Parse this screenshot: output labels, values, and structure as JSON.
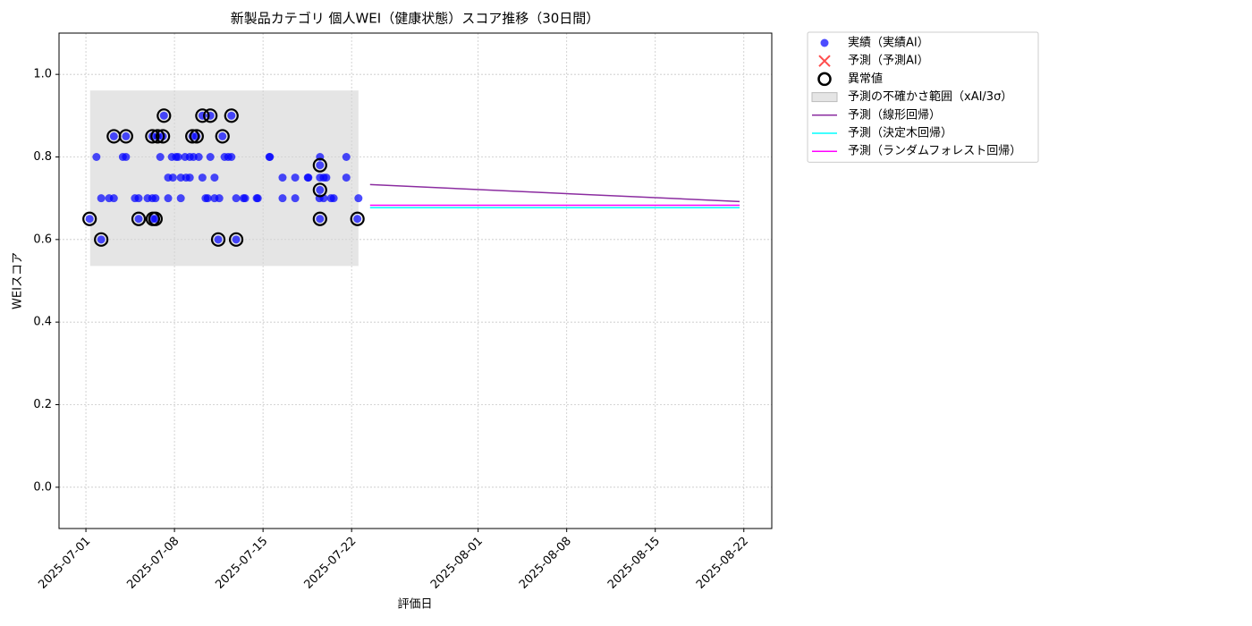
{
  "chart_data": {
    "type": "scatter",
    "title": "新製品カテゴリ 個人WEI（健康状態）スコア推移（30日間）",
    "x_label": "評価日",
    "y_label": "WEIスコア",
    "xlim": [
      "2025-06-28T21:00",
      "2025-08-24T05:00"
    ],
    "ylim": [
      -0.1,
      1.1
    ],
    "xticks": [
      "2025-07-01",
      "2025-07-08",
      "2025-07-15",
      "2025-07-22",
      "2025-08-01",
      "2025-08-08",
      "2025-08-15",
      "2025-08-22"
    ],
    "yticks": [
      {
        "value": 0,
        "label": "0.0"
      },
      0.2,
      0.4,
      0.6,
      0.8,
      {
        "value": 1,
        "label": "1.0"
      }
    ],
    "grid": true,
    "legend": "outside upper right",
    "series": [
      {
        "name": "実績（実績AI）",
        "kind": "points",
        "color": "#0000ff",
        "x": [
          "2025-07-01T07:00",
          "2025-07-01T20:00",
          "2025-07-02T05:00",
          "2025-07-02T05:00",
          "2025-07-02T20:00",
          "2025-07-03T05:00",
          "2025-07-03T05:00",
          "2025-07-03T22:00",
          "2025-07-04T04:00",
          "2025-07-04T04:00",
          "2025-07-04T21:00",
          "2025-07-05T04:00",
          "2025-07-05T04:00",
          "2025-07-05T21:00",
          "2025-07-06T06:00",
          "2025-07-06T06:00",
          "2025-07-06T07:00",
          "2025-07-06T12:00",
          "2025-07-06T12:00",
          "2025-07-06T16:00",
          "2025-07-06T21:00",
          "2025-07-07T02:00",
          "2025-07-07T04:00",
          "2025-07-07T12:00",
          "2025-07-07T12:00",
          "2025-07-07T19:00",
          "2025-07-07T21:00",
          "2025-07-08T03:00",
          "2025-07-08T07:00",
          "2025-07-08T12:00",
          "2025-07-08T12:00",
          "2025-07-08T20:00",
          "2025-07-08T22:00",
          "2025-07-09T05:00",
          "2025-07-09T05:00",
          "2025-07-09T10:00",
          "2025-07-09T12:00",
          "2025-07-09T18:00",
          "2025-07-09T22:00",
          "2025-07-10T05:00",
          "2025-07-10T05:00",
          "2025-07-10T11:00",
          "2025-07-10T15:00",
          "2025-07-10T20:00",
          "2025-07-10T20:00",
          "2025-07-11T04:00",
          "2025-07-11T04:00",
          "2025-07-11T11:00",
          "2025-07-11T13:00",
          "2025-07-11T19:00",
          "2025-07-11T23:00",
          "2025-07-12T06:00",
          "2025-07-12T12:00",
          "2025-07-12T12:00",
          "2025-07-12T21:00",
          "2025-07-12T21:00",
          "2025-07-13T11:00",
          "2025-07-13T14:00",
          "2025-07-14T12:00",
          "2025-07-14T14:00",
          "2025-07-15T12:00",
          "2025-07-15T13:00",
          "2025-07-16T13:00",
          "2025-07-16T13:00",
          "2025-07-17T13:00",
          "2025-07-17T13:00",
          "2025-07-18T13:00",
          "2025-07-18T14:00",
          "2025-07-19T11:00",
          "2025-07-19T12:00",
          "2025-07-19T12:00",
          "2025-07-19T12:00",
          "2025-07-19T12:00",
          "2025-07-19T12:00",
          "2025-07-19T19:00",
          "2025-07-19T19:00",
          "2025-07-20T00:00",
          "2025-07-20T09:00",
          "2025-07-20T14:00",
          "2025-07-21T14:00",
          "2025-07-21T14:00",
          "2025-07-22T13:00",
          "2025-07-22T11:00"
        ],
        "values": [
          0.65,
          0.8,
          0.7,
          0.6,
          0.7,
          0.7,
          0.85,
          0.8,
          0.8,
          0.85,
          0.7,
          0.7,
          0.65,
          0.7,
          0.7,
          0.85,
          0.65,
          0.7,
          0.65,
          0.85,
          0.8,
          0.85,
          0.9,
          0.75,
          0.7,
          0.8,
          0.75,
          0.8,
          0.8,
          0.7,
          0.75,
          0.8,
          0.75,
          0.8,
          0.75,
          0.85,
          0.8,
          0.85,
          0.8,
          0.9,
          0.75,
          0.7,
          0.7,
          0.9,
          0.8,
          0.75,
          0.7,
          0.6,
          0.7,
          0.85,
          0.8,
          0.8,
          0.8,
          0.9,
          0.7,
          0.6,
          0.7,
          0.7,
          0.7,
          0.7,
          0.8,
          0.8,
          0.75,
          0.7,
          0.75,
          0.7,
          0.75,
          0.75,
          0.7,
          0.8,
          0.78,
          0.75,
          0.72,
          0.65,
          0.75,
          0.7,
          0.75,
          0.7,
          0.7,
          0.8,
          0.75,
          0.7,
          0.65
        ]
      },
      {
        "name": "予測（予測AI）",
        "kind": "cross",
        "color": "#ff0000",
        "x": [],
        "values": []
      },
      {
        "name": "異常値",
        "kind": "rings",
        "color": "#000000",
        "x": [
          "2025-07-01T07:00",
          "2025-07-02T05:00",
          "2025-07-03T05:00",
          "2025-07-04T04:00",
          "2025-07-05T04:00",
          "2025-07-06T06:00",
          "2025-07-06T07:00",
          "2025-07-06T12:00",
          "2025-07-06T16:00",
          "2025-07-07T02:00",
          "2025-07-07T04:00",
          "2025-07-09T10:00",
          "2025-07-09T18:00",
          "2025-07-10T05:00",
          "2025-07-10T20:00",
          "2025-07-11T11:00",
          "2025-07-11T19:00",
          "2025-07-12T12:00",
          "2025-07-12T21:00",
          "2025-07-19T12:00",
          "2025-07-19T12:00",
          "2025-07-19T12:00",
          "2025-07-22T11:00"
        ],
        "values": [
          0.65,
          0.6,
          0.85,
          0.85,
          0.65,
          0.85,
          0.65,
          0.65,
          0.85,
          0.85,
          0.9,
          0.85,
          0.85,
          0.9,
          0.9,
          0.6,
          0.85,
          0.9,
          0.6,
          0.78,
          0.72,
          0.65,
          0.65
        ]
      },
      {
        "name": "予測の不確かさ範囲（xAI/3σ）",
        "kind": "band",
        "color": "#d3d3d3",
        "x": [
          "2025-07-01T08:00",
          "2025-07-22T13:00"
        ],
        "lower": 0.536,
        "upper": 0.961
      },
      {
        "name": "予測（線形回帰）",
        "kind": "line",
        "color": "#8b2ca0",
        "x": [
          "2025-07-23T11:00",
          "2025-08-21T16:00"
        ],
        "values": [
          0.733,
          0.692
        ]
      },
      {
        "name": "予測（決定木回帰）",
        "kind": "line",
        "color": "#00ffff",
        "x": [
          "2025-07-23T11:00",
          "2025-08-21T16:00"
        ],
        "values": [
          0.677,
          0.677
        ]
      },
      {
        "name": "予測（ランダムフォレスト回帰）",
        "kind": "line",
        "color": "#ff00ff",
        "x": [
          "2025-07-23T11:00",
          "2025-08-21T16:00"
        ],
        "values": [
          0.683,
          0.683
        ]
      }
    ]
  }
}
